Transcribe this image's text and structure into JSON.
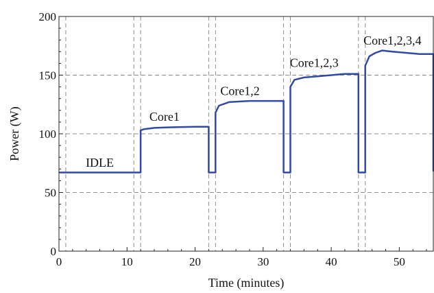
{
  "chart_data": {
    "type": "line",
    "title": "",
    "xlabel": "Time (minutes)",
    "ylabel": "Power (W)",
    "xlim": [
      0,
      55
    ],
    "ylim": [
      0,
      200
    ],
    "xticks": [
      0,
      10,
      20,
      30,
      40,
      50
    ],
    "yticks": [
      0,
      50,
      100,
      150,
      200
    ],
    "grid": true,
    "legend": "none",
    "vlines": [
      1,
      11,
      12,
      22,
      23,
      33,
      34,
      44,
      45
    ],
    "series": [
      {
        "color": "#3049a8",
        "x": [
          0,
          12,
          12,
          12.5,
          14,
          16,
          20,
          22,
          22,
          23,
          23,
          23.5,
          25,
          28,
          30,
          33,
          33,
          34,
          34,
          34.6,
          36,
          38,
          40,
          42,
          44,
          44,
          45,
          45,
          45.6,
          46.5,
          47.5,
          49,
          51,
          53,
          55,
          55
        ],
        "y": [
          67,
          67,
          103,
          104,
          105,
          105.5,
          106,
          106,
          67,
          67,
          118,
          124,
          127,
          128,
          128,
          128,
          67,
          67,
          140,
          146,
          148,
          149,
          150,
          151,
          151,
          67,
          67,
          158,
          166,
          169,
          171,
          170,
          169,
          168,
          168,
          68
        ]
      }
    ],
    "annotations": [
      {
        "text": "IDLE",
        "x": 6,
        "y": 72
      },
      {
        "text": "Core1",
        "x": 15.5,
        "y": 111
      },
      {
        "text": "Core1,2",
        "x": 26.6,
        "y": 133
      },
      {
        "text": "Core1,2,3",
        "x": 37.5,
        "y": 157
      },
      {
        "text": "Core1,2,3,4",
        "x": 49,
        "y": 176
      }
    ]
  }
}
